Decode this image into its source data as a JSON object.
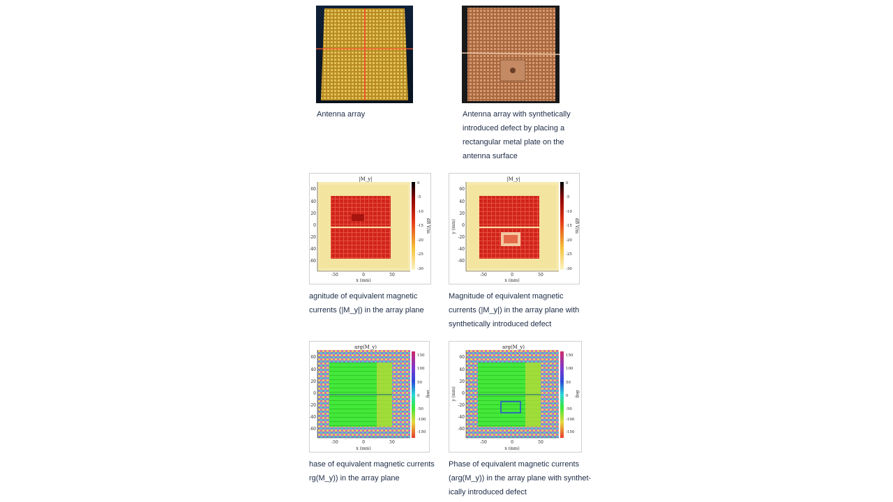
{
  "figures": [
    {
      "id": "photo-array",
      "caption_lines": [
        "Antenna array"
      ]
    },
    {
      "id": "photo-defect",
      "caption_lines": [
        "Antenna array with synthetically",
        "introduced defect by placing a",
        "rectangular metal plate on  the",
        "antenna surface"
      ]
    },
    {
      "id": "mag-array",
      "plot_title": "|M_y|",
      "caption_lines": [
        "agnitude of equivalent magnetic",
        "currents (|M_y|) in the array plane"
      ]
    },
    {
      "id": "mag-defect",
      "plot_title": "|M_y|",
      "caption_lines": [
        "Magnitude of equivalent magnetic",
        "currents (|M_y|) in the array plane with",
        "synthetically introduced defect"
      ]
    },
    {
      "id": "phase-array",
      "plot_title": "arg(M_y)",
      "caption_lines": [
        "hase of equivalent magnetic currents",
        "rg(M_y)) in the array plane"
      ]
    },
    {
      "id": "phase-defect",
      "plot_title": "arg(M_y)",
      "caption_lines": [
        "Phase of equivalent magnetic currents",
        "(arg(M_y)) in the array plane with synthet-",
        "ically introduced defect"
      ]
    }
  ],
  "plot_axes": {
    "x_ticks": [
      "-50",
      "0",
      "50"
    ],
    "y_ticks": [
      "60",
      "40",
      "20",
      "0",
      "-20",
      "-40",
      "-60"
    ],
    "x_label": "x (mm)",
    "y_label": "y (mm)"
  },
  "magnitude_colorbar": {
    "ticks": [
      "0",
      "-5",
      "-10",
      "-15",
      "-20",
      "-25",
      "-30"
    ],
    "unit_label": "dB V/m"
  },
  "phase_colorbar": {
    "ticks": [
      "150",
      "100",
      "50",
      "0",
      "-50",
      "-100",
      "-150"
    ],
    "unit_label": "deg"
  },
  "colors": {
    "caption_text": "#1b2a45",
    "magnitude_high": "#d0241b",
    "magnitude_low": "#f6eab0",
    "phase_uniform": "#44e83a"
  }
}
